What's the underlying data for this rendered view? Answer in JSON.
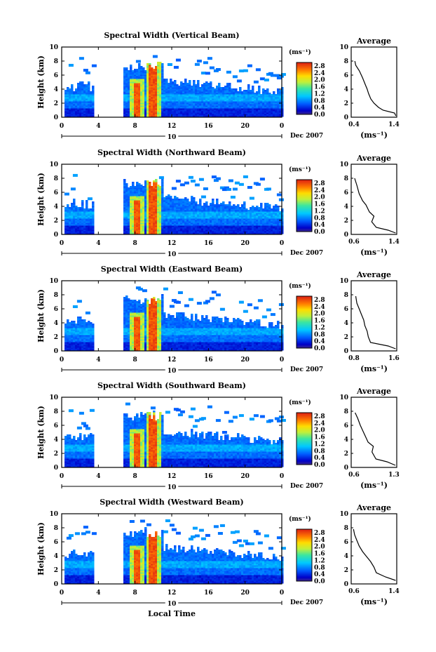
{
  "shared": {
    "time_ticks": [
      "0",
      "4",
      "8",
      "12",
      "16",
      "20",
      "0"
    ],
    "height_ticks": [
      "0",
      "2",
      "4",
      "6",
      "8",
      "10"
    ],
    "colorbar_ticks": [
      "0.0",
      "0.4",
      "0.8",
      "1.2",
      "1.6",
      "2.0",
      "2.4",
      "2.8"
    ],
    "colorbar_unit": "(ms⁻¹)",
    "date_label": "10",
    "date_right": "Dec 2007",
    "avg_title": "Average",
    "avg_unit": "(ms⁻¹)",
    "ylabel": "Height (km)",
    "xlabel": "Local Time"
  },
  "chart_data": [
    {
      "type": "heatmap",
      "title": "Spectral Width (Vertical Beam)",
      "x_range": [
        0,
        24
      ],
      "y_range": [
        0,
        10
      ],
      "color_range": [
        0,
        3
      ],
      "average": {
        "type": "line",
        "title": "Average",
        "xlim": [
          0.4,
          1.4
        ],
        "xticks": [
          "0.4",
          "1.4"
        ],
        "ylim": [
          0,
          10
        ],
        "profile": [
          [
            0.48,
            8.0
          ],
          [
            0.5,
            7.4
          ],
          [
            0.58,
            6.6
          ],
          [
            0.65,
            5.6
          ],
          [
            0.7,
            4.8
          ],
          [
            0.75,
            4.0
          ],
          [
            0.78,
            3.4
          ],
          [
            0.83,
            2.6
          ],
          [
            0.9,
            2.0
          ],
          [
            1.0,
            1.4
          ],
          [
            1.1,
            1.0
          ],
          [
            1.35,
            0.6
          ],
          [
            1.38,
            0.2
          ]
        ]
      }
    },
    {
      "type": "heatmap",
      "title": "Spectral Width (Northward Beam)",
      "x_range": [
        0,
        24
      ],
      "y_range": [
        0,
        10
      ],
      "color_range": [
        0,
        3
      ],
      "average": {
        "type": "line",
        "title": "Average",
        "xlim": [
          0.6,
          1.4
        ],
        "xticks": [
          "0.6",
          "1.4"
        ],
        "ylim": [
          0,
          10
        ],
        "profile": [
          [
            0.66,
            8.0
          ],
          [
            0.7,
            7.0
          ],
          [
            0.74,
            5.8
          ],
          [
            0.8,
            4.8
          ],
          [
            0.86,
            4.2
          ],
          [
            0.92,
            3.2
          ],
          [
            1.0,
            2.6
          ],
          [
            0.96,
            1.8
          ],
          [
            1.04,
            1.0
          ],
          [
            1.25,
            0.6
          ],
          [
            1.38,
            0.2
          ]
        ]
      }
    },
    {
      "type": "heatmap",
      "title": "Spectral Width (Eastward Beam)",
      "x_range": [
        0,
        24
      ],
      "y_range": [
        0,
        10
      ],
      "color_range": [
        0,
        3
      ],
      "average": {
        "type": "line",
        "title": "Average",
        "xlim": [
          0.8,
          1.6
        ],
        "xticks": [
          "0.8",
          "1.6"
        ],
        "ylim": [
          0,
          10
        ],
        "profile": [
          [
            0.88,
            7.8
          ],
          [
            0.9,
            6.8
          ],
          [
            0.94,
            6.0
          ],
          [
            0.98,
            5.2
          ],
          [
            1.02,
            4.4
          ],
          [
            1.04,
            3.6
          ],
          [
            1.08,
            2.8
          ],
          [
            1.1,
            2.0
          ],
          [
            1.14,
            1.2
          ],
          [
            1.45,
            0.7
          ],
          [
            1.58,
            0.3
          ]
        ]
      }
    },
    {
      "type": "heatmap",
      "title": "Spectral Width (Southward Beam)",
      "x_range": [
        0,
        24
      ],
      "y_range": [
        0,
        10
      ],
      "color_range": [
        0,
        3
      ],
      "average": {
        "type": "line",
        "title": "Average",
        "xlim": [
          0.6,
          1.3
        ],
        "xticks": [
          "0.6",
          "1.3"
        ],
        "ylim": [
          0,
          10
        ],
        "profile": [
          [
            0.66,
            7.8
          ],
          [
            0.7,
            7.0
          ],
          [
            0.74,
            6.0
          ],
          [
            0.78,
            5.2
          ],
          [
            0.82,
            4.4
          ],
          [
            0.86,
            3.6
          ],
          [
            0.94,
            3.0
          ],
          [
            0.92,
            2.2
          ],
          [
            0.98,
            1.2
          ],
          [
            1.15,
            0.8
          ],
          [
            1.28,
            0.3
          ]
        ]
      }
    },
    {
      "type": "heatmap",
      "title": "Spectral Width (Westward Beam)",
      "x_range": [
        0,
        24
      ],
      "y_range": [
        0,
        10
      ],
      "color_range": [
        0,
        3
      ],
      "average": {
        "type": "line",
        "title": "Average",
        "xlim": [
          0.6,
          1.4
        ],
        "xticks": [
          "0.6",
          "1.4"
        ],
        "ylim": [
          0,
          10
        ],
        "profile": [
          [
            0.64,
            7.8
          ],
          [
            0.66,
            7.0
          ],
          [
            0.7,
            6.2
          ],
          [
            0.74,
            5.4
          ],
          [
            0.8,
            4.6
          ],
          [
            0.86,
            4.0
          ],
          [
            0.94,
            3.2
          ],
          [
            1.0,
            2.4
          ],
          [
            1.04,
            1.6
          ],
          [
            1.2,
            1.0
          ],
          [
            1.38,
            0.5
          ]
        ]
      }
    }
  ]
}
